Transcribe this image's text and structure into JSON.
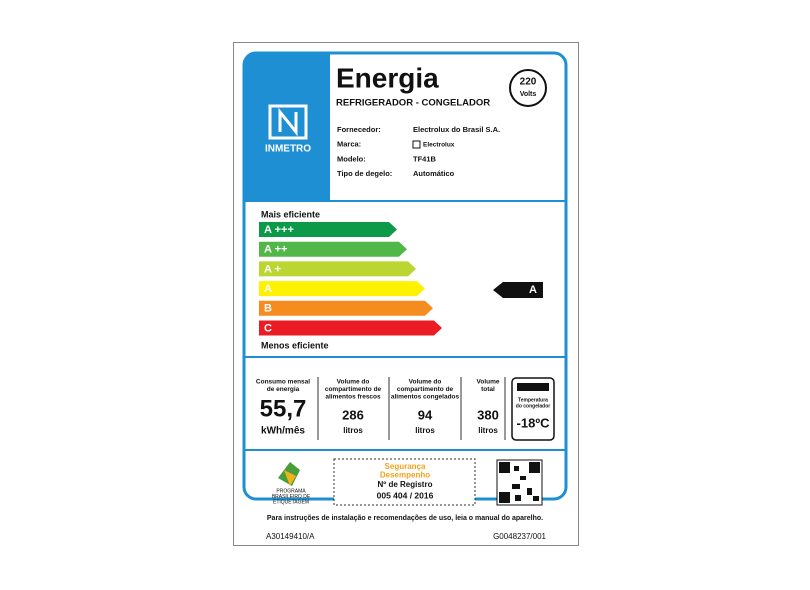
{
  "header": {
    "title": "Energia",
    "subtitle": "REFRIGERADOR - CONGELADOR",
    "voltage": "220",
    "voltage_unit": "Volts",
    "logo": "INMETRO"
  },
  "info": [
    [
      "Fornecedor:",
      "Electrolux do Brasil S.A."
    ],
    [
      "Marca:",
      "Electrolux"
    ],
    [
      "Modelo:",
      "TF41B"
    ],
    [
      "Tipo de degelo:",
      "Automático"
    ]
  ],
  "efficiency": {
    "top_label": "Mais eficiente",
    "bottom_label": "Menos eficiente",
    "classes": [
      "A +++",
      "A ++",
      "A +",
      "A",
      "B",
      "C"
    ],
    "rating": "A"
  },
  "metrics": {
    "consumption": {
      "label": [
        "Consumo mensal",
        "de energia"
      ],
      "value": "55,7",
      "unit": "kWh/mês"
    },
    "fresh": {
      "label": [
        "Volume do",
        "compartimento de",
        "alimentos frescos"
      ],
      "value": "286",
      "unit": "litros"
    },
    "frozen": {
      "label": [
        "Volume do",
        "compartimento de",
        "alimentos congelados"
      ],
      "value": "94",
      "unit": "litros"
    },
    "total": {
      "label": [
        "Volume",
        "total"
      ],
      "value": "380",
      "unit": "litros"
    },
    "temperature": {
      "label": [
        "Temperatura",
        "do congelador"
      ],
      "value": "-18ºC"
    }
  },
  "certification": {
    "program": [
      "PROGRAMA",
      "BRASILEIRO DE",
      "ETIQUETAGEM"
    ],
    "seal": [
      "Segurança",
      "Desempenho"
    ],
    "registry_label": "Nº de Registro",
    "registry": "005 404 / 2016"
  },
  "footer": {
    "note": "Para instruções de instalação e recomendações de uso, leia o manual do aparelho.",
    "code_left": "A30149410/A",
    "code_right": "G0048237/001"
  }
}
